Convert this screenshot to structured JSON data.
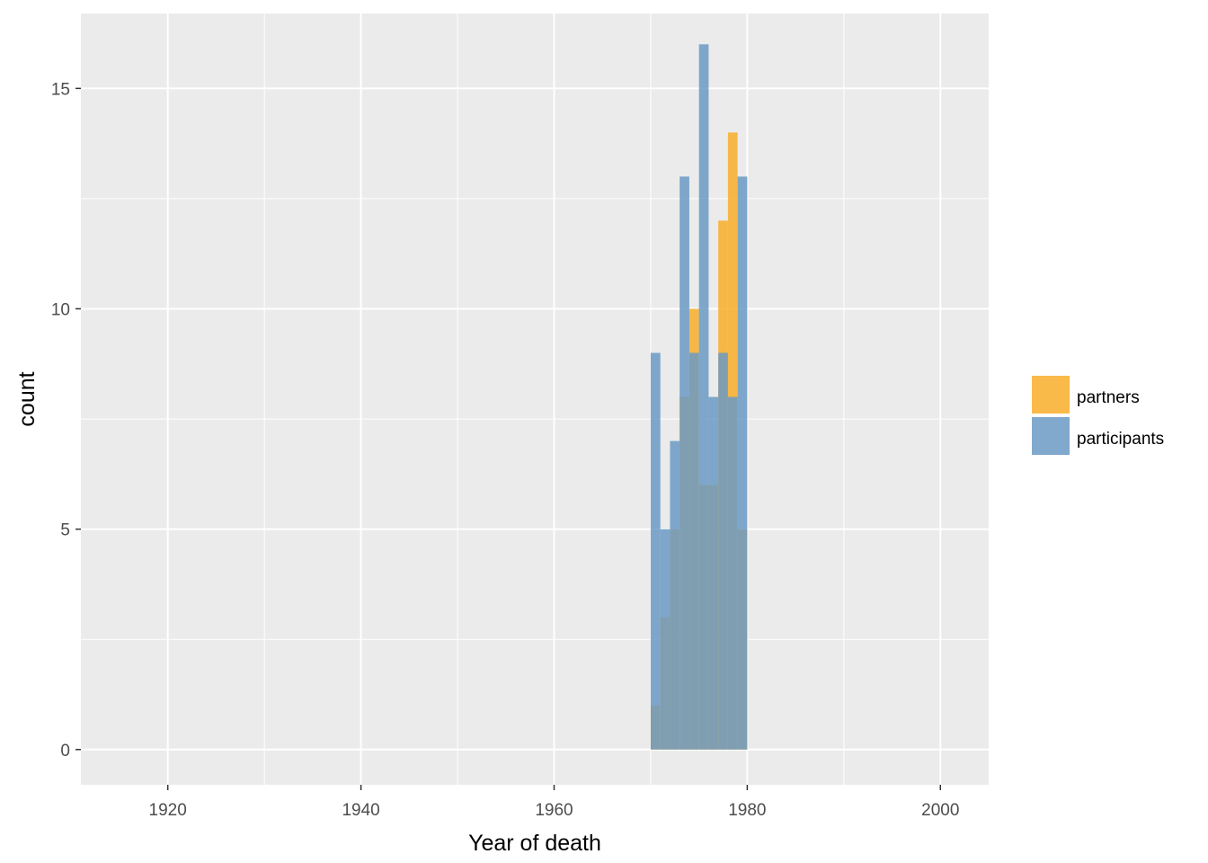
{
  "chart_data": {
    "type": "bar",
    "subtype": "overlapping-histogram",
    "xlabel": "Year of death",
    "ylabel": "count",
    "xlim": [
      1911,
      2005
    ],
    "ylim": [
      -0.8,
      16.7
    ],
    "x_ticks": [
      1920,
      1940,
      1960,
      1980,
      2000
    ],
    "y_ticks": [
      0,
      5,
      10,
      15
    ],
    "grid": true,
    "legend_position": "right",
    "bin_width": 1,
    "bin_starts": [
      1970,
      1971,
      1972,
      1973,
      1974,
      1975,
      1976,
      1977,
      1978,
      1979
    ],
    "series": [
      {
        "name": "partners",
        "color": "#F8AE2A",
        "opacity": 0.85,
        "values": [
          1,
          3,
          5,
          8,
          10,
          6,
          6,
          12,
          14,
          5
        ]
      },
      {
        "name": "participants",
        "color": "#6A9AC4",
        "opacity": 0.85,
        "values": [
          9,
          5,
          7,
          13,
          9,
          16,
          8,
          9,
          8,
          13
        ]
      }
    ]
  }
}
